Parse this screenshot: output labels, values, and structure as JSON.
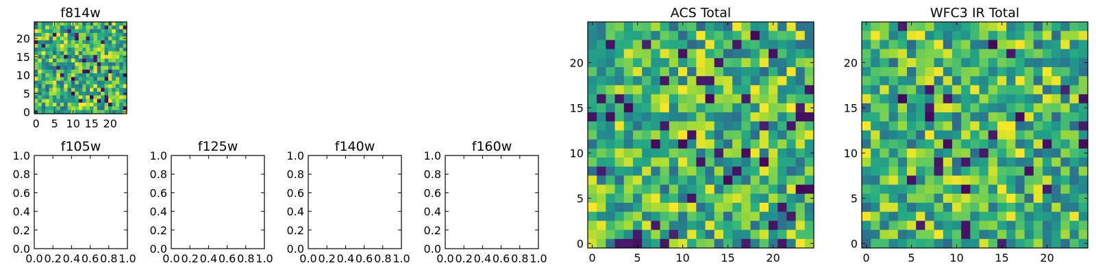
{
  "figure": {
    "background": "#ffffff",
    "colormap": "viridis"
  },
  "chart_data": [
    {
      "type": "heatmap",
      "title": "f814w",
      "xlabel": "",
      "ylabel": "",
      "grid_size": 25,
      "seed": 814,
      "xticks": [
        0,
        5,
        10,
        15,
        20
      ],
      "yticks": [
        0,
        5,
        10,
        15,
        20
      ],
      "xlim": [
        -0.5,
        24.5
      ],
      "ylim": [
        -0.5,
        24.5
      ],
      "grid": false
    },
    {
      "type": "empty",
      "title": "f105w",
      "xticks": [
        "0.0",
        "0.2",
        "0.4",
        "0.6",
        "0.8",
        "1.0"
      ],
      "yticks": [
        "0.0",
        "0.2",
        "0.4",
        "0.6",
        "0.8",
        "1.0"
      ],
      "xlim": [
        0,
        1
      ],
      "ylim": [
        0,
        1
      ]
    },
    {
      "type": "empty",
      "title": "f125w",
      "xticks": [
        "0.0",
        "0.2",
        "0.4",
        "0.6",
        "0.8",
        "1.0"
      ],
      "yticks": [
        "0.0",
        "0.2",
        "0.4",
        "0.6",
        "0.8",
        "1.0"
      ],
      "xlim": [
        0,
        1
      ],
      "ylim": [
        0,
        1
      ]
    },
    {
      "type": "empty",
      "title": "f140w",
      "xticks": [
        "0.0",
        "0.2",
        "0.4",
        "0.6",
        "0.8",
        "1.0"
      ],
      "yticks": [
        "0.0",
        "0.2",
        "0.4",
        "0.6",
        "0.8",
        "1.0"
      ],
      "xlim": [
        0,
        1
      ],
      "ylim": [
        0,
        1
      ]
    },
    {
      "type": "empty",
      "title": "f160w",
      "xticks": [
        "0.0",
        "0.2",
        "0.4",
        "0.6",
        "0.8",
        "1.0"
      ],
      "yticks": [
        "0.0",
        "0.2",
        "0.4",
        "0.6",
        "0.8",
        "1.0"
      ],
      "xlim": [
        0,
        1
      ],
      "ylim": [
        0,
        1
      ]
    },
    {
      "type": "heatmap",
      "title": "ACS Total",
      "grid_size": 25,
      "seed": 606,
      "xticks": [
        0,
        5,
        10,
        15,
        20
      ],
      "yticks": [
        0,
        5,
        10,
        15,
        20
      ],
      "xlim": [
        -0.5,
        24.5
      ],
      "ylim": [
        -0.5,
        24.5
      ],
      "grid": false
    },
    {
      "type": "heatmap",
      "title": "WFC3 IR Total",
      "grid_size": 25,
      "seed": 3,
      "xticks": [
        0,
        5,
        10,
        15,
        20
      ],
      "yticks": [
        0,
        5,
        10,
        15,
        20
      ],
      "xlim": [
        -0.5,
        24.5
      ],
      "ylim": [
        -0.5,
        24.5
      ],
      "grid": false
    }
  ]
}
